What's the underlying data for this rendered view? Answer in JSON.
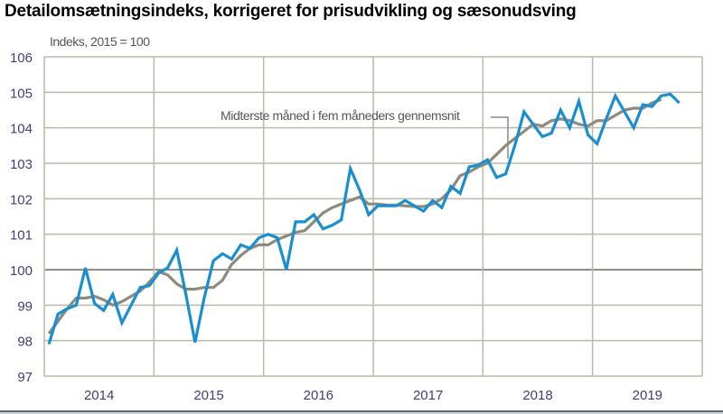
{
  "chart_data": {
    "type": "line",
    "title": "Detailomsætningsindeks, korrigeret for prisudvikling og sæsonudsving",
    "ylabel": "Indeks, 2015 = 100",
    "xlabel": "",
    "ylim": [
      97,
      106
    ],
    "yticks": [
      97,
      98,
      99,
      100,
      101,
      102,
      103,
      104,
      105,
      106
    ],
    "xticks": [
      "2014",
      "2015",
      "2016",
      "2017",
      "2018",
      "2019"
    ],
    "grid": true,
    "reference_line": 100,
    "annotation": "Midterste måned i fem måneders gennemsnit",
    "x_start": "2014-01",
    "frequency": "monthly",
    "series": [
      {
        "name": "Detailomsætningsindeks",
        "color": "#1a8fd0",
        "values": [
          97.9,
          98.75,
          98.9,
          99.0,
          100.05,
          99.05,
          98.85,
          99.3,
          98.5,
          99.0,
          99.5,
          99.55,
          99.9,
          100.05,
          100.55,
          99.3,
          97.95,
          99.2,
          100.25,
          100.45,
          100.3,
          100.7,
          100.6,
          100.9,
          101.0,
          100.9,
          100.0,
          101.35,
          101.35,
          101.55,
          101.15,
          101.25,
          101.4,
          102.85,
          102.25,
          101.55,
          101.8,
          101.8,
          101.8,
          101.95,
          101.8,
          101.65,
          101.95,
          101.75,
          102.35,
          102.15,
          102.9,
          102.95,
          103.1,
          102.6,
          102.7,
          103.5,
          104.45,
          104.1,
          103.75,
          103.85,
          104.5,
          104.0,
          104.75,
          103.8,
          103.55,
          104.25,
          104.9,
          104.45,
          104.0,
          104.65,
          104.6,
          104.9,
          104.95,
          104.7
        ]
      },
      {
        "name": "Midterste måned i fem måneders gennemsnit",
        "color": "#8f8a7e",
        "values": [
          98.2,
          98.55,
          98.9,
          99.2,
          99.2,
          99.25,
          99.15,
          99.0,
          99.1,
          99.25,
          99.4,
          99.65,
          99.95,
          99.85,
          99.6,
          99.45,
          99.45,
          99.5,
          99.5,
          99.7,
          100.15,
          100.4,
          100.6,
          100.7,
          100.7,
          100.85,
          100.95,
          101.05,
          101.1,
          101.35,
          101.6,
          101.75,
          101.85,
          101.95,
          102.05,
          101.85,
          101.85,
          101.82,
          101.82,
          101.8,
          101.78,
          101.78,
          101.85,
          102.0,
          102.25,
          102.65,
          102.75,
          102.9,
          103.0,
          103.25,
          103.5,
          103.7,
          103.9,
          104.1,
          104.05,
          104.2,
          104.25,
          104.2,
          104.1,
          104.05,
          104.2,
          104.2,
          104.35,
          104.5,
          104.55,
          104.55,
          104.7,
          104.8
        ]
      }
    ]
  },
  "page": {
    "title": "Detailomsætningsindeks, korrigeret for prisudvikling og sæsonudsving",
    "unit_label": "Indeks, 2015 = 100",
    "annotation": "Midterste måned i fem måneders gennemsnit"
  },
  "colors": {
    "series_main": "#1a8fd0",
    "series_trend": "#8f8a7e",
    "grid": "#bbb8aa",
    "reference_line": "#6f6b5e",
    "tick_label": "#3d3f7a"
  }
}
